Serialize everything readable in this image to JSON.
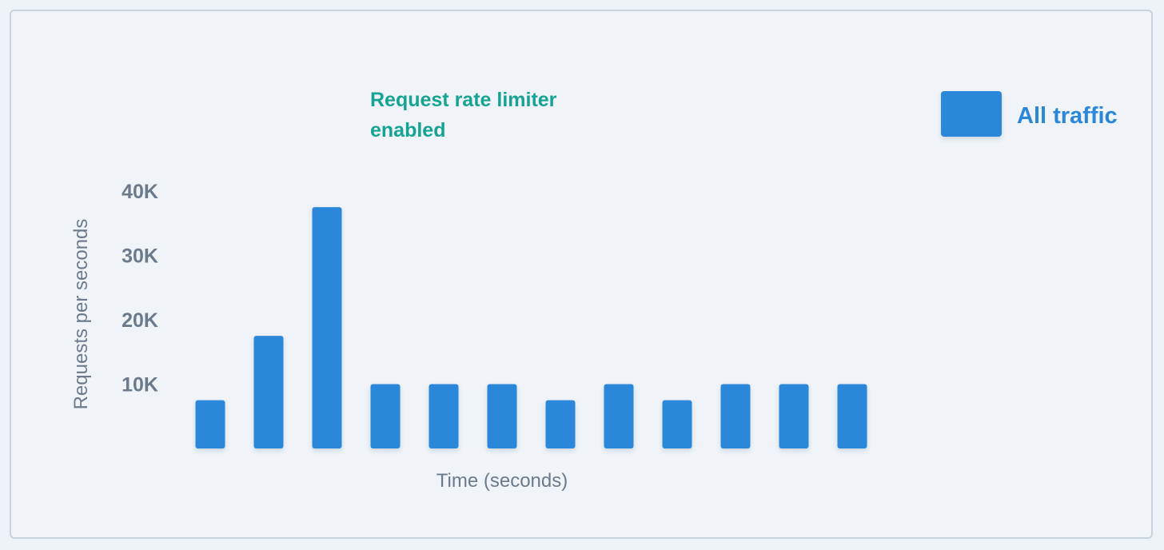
{
  "chart_data": {
    "type": "bar",
    "categories": [
      "",
      "",
      "",
      "",
      "",
      "",
      "",
      "",
      "",
      "",
      "",
      ""
    ],
    "series": [
      {
        "name": "All traffic",
        "values": [
          7500,
          17500,
          37500,
          10000,
          10000,
          10000,
          7500,
          10000,
          7500,
          10000,
          10000,
          10000
        ]
      }
    ],
    "ylim": [
      0,
      40000
    ],
    "yticks": [
      {
        "value": 10000,
        "label": "10K"
      },
      {
        "value": 20000,
        "label": "20K"
      },
      {
        "value": 30000,
        "label": "30K"
      },
      {
        "value": 40000,
        "label": "40K"
      }
    ],
    "xlabel": "Time (seconds)",
    "ylabel": "Requests per seconds",
    "annotation_lines": [
      "Request rate limiter",
      "enabled"
    ],
    "legend_position": "top-right",
    "grid": false,
    "colors": {
      "bar": "#2b87d9",
      "annotation": "#16a394",
      "axis_text": "#6b7a8c"
    }
  }
}
